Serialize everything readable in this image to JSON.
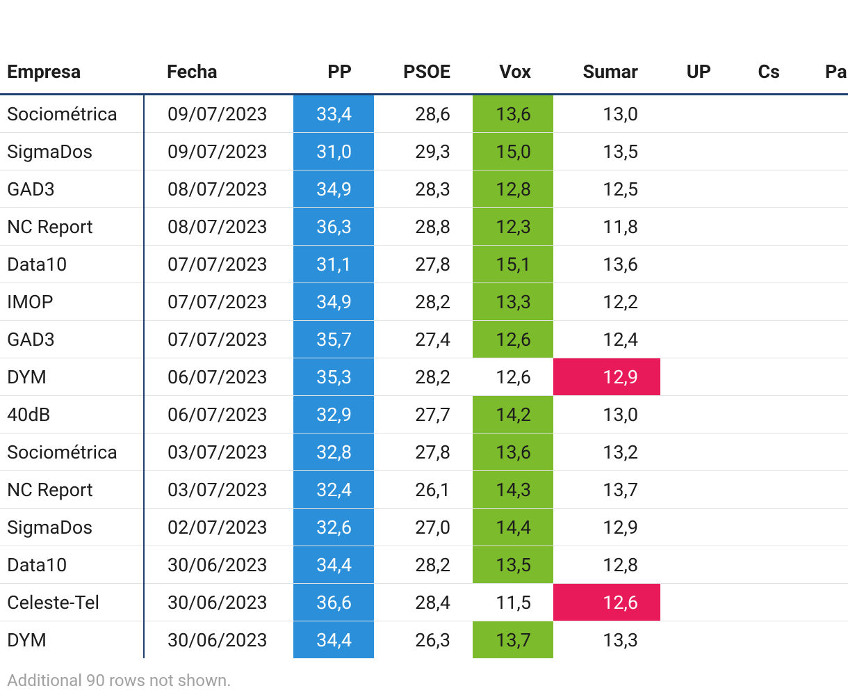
{
  "table": {
    "columns": [
      "Empresa",
      "Fecha",
      "PP",
      "PSOE",
      "Vox",
      "Sumar",
      "UP",
      "Cs",
      "Pa"
    ],
    "column_colors": {
      "PP": "#2b90d9",
      "Vox": "#7cbb2b",
      "Sumar": "#e81a59"
    },
    "rows": [
      [
        "Sociométrica",
        "09/07/2023",
        "33,4",
        "28,6",
        "13,6",
        "13,0"
      ],
      [
        "SigmaDos",
        "09/07/2023",
        "31,0",
        "29,3",
        "15,0",
        "13,5"
      ],
      [
        "GAD3",
        "08/07/2023",
        "34,9",
        "28,3",
        "12,8",
        "12,5"
      ],
      [
        "NC Report",
        "08/07/2023",
        "36,3",
        "28,8",
        "12,3",
        "11,8"
      ],
      [
        "Data10",
        "07/07/2023",
        "31,1",
        "27,8",
        "15,1",
        "13,6"
      ],
      [
        "IMOP",
        "07/07/2023",
        "34,9",
        "28,2",
        "13,3",
        "12,2"
      ],
      [
        "GAD3",
        "07/07/2023",
        "35,7",
        "27,4",
        "12,6",
        "12,4"
      ],
      [
        "DYM",
        "06/07/2023",
        "35,3",
        "28,2",
        "12,6",
        "12,9"
      ],
      [
        "40dB",
        "06/07/2023",
        "32,9",
        "27,7",
        "14,2",
        "13,0"
      ],
      [
        "Sociométrica",
        "03/07/2023",
        "32,8",
        "27,8",
        "13,6",
        "13,2"
      ],
      [
        "NC Report",
        "03/07/2023",
        "32,4",
        "26,1",
        "14,3",
        "13,7"
      ],
      [
        "SigmaDos",
        "02/07/2023",
        "32,6",
        "27,0",
        "14,4",
        "12,9"
      ],
      [
        "Data10",
        "30/06/2023",
        "34,4",
        "28,2",
        "13,5",
        "12,8"
      ],
      [
        "Celeste-Tel",
        "30/06/2023",
        "36,6",
        "28,4",
        "11,5",
        "12,6"
      ],
      [
        "DYM",
        "30/06/2023",
        "34,4",
        "26,3",
        "13,7",
        "13,3"
      ]
    ],
    "footnote": "Additional 90 rows not shown."
  }
}
